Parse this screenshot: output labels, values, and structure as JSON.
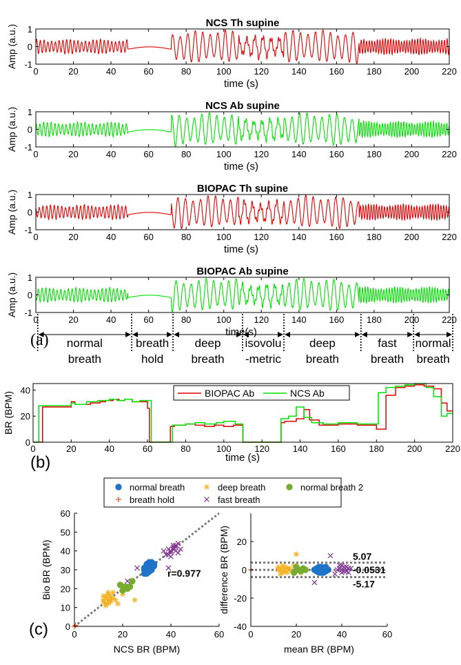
{
  "panel_labels": {
    "a": "(a)",
    "b": "(b)",
    "c": "(c)"
  },
  "colors": {
    "red": "#e00000",
    "green": "#00e000",
    "blue": "#1f73c8",
    "orange": "#f5b324",
    "olive": "#77ac30",
    "purple": "#7e2f8e",
    "brick": "#d95319",
    "ref_line": "#777777"
  },
  "signal_panels": [
    {
      "title": "NCS Th supine",
      "color": "red",
      "ylabel": "Amp (a.u.)",
      "xlabel": "time (s)",
      "xlim": [
        0,
        220
      ],
      "ylim": [
        -1,
        1
      ],
      "xticks": [
        0,
        20,
        40,
        60,
        80,
        100,
        120,
        140,
        160,
        180,
        200,
        220
      ],
      "yticks": [
        -1,
        0,
        1
      ]
    },
    {
      "title": "NCS Ab supine",
      "color": "green",
      "ylabel": "Amp (a.u.)",
      "xlabel": "time (s)",
      "xlim": [
        0,
        220
      ],
      "ylim": [
        -1,
        1
      ],
      "xticks": [
        0,
        20,
        40,
        60,
        80,
        100,
        120,
        140,
        160,
        180,
        200,
        220
      ],
      "yticks": [
        -1,
        0,
        1
      ]
    },
    {
      "title": "BIOPAC Th supine",
      "color": "red",
      "ylabel": "Amp (a.u.)",
      "xlabel": "time (s)",
      "xlim": [
        0,
        220
      ],
      "ylim": [
        -1,
        1
      ],
      "xticks": [
        0,
        20,
        40,
        60,
        80,
        100,
        120,
        140,
        160,
        180,
        200,
        220
      ],
      "yticks": [
        -1,
        0,
        1
      ]
    },
    {
      "title": "BIOPAC Ab supine",
      "color": "green",
      "ylabel": "Amp (a.u.)",
      "xlabel": "time(s)",
      "xlim": [
        0,
        220
      ],
      "ylim": [
        -1,
        1
      ],
      "xticks": [
        0,
        20,
        40,
        60,
        80,
        100,
        120,
        140,
        160,
        180,
        200,
        220
      ],
      "yticks": [
        -1,
        0,
        1
      ]
    }
  ],
  "signal_segments": [
    {
      "start": 0,
      "end": 49,
      "rate_bpm": 30,
      "amp": 0.4,
      "type": "normal"
    },
    {
      "start": 49,
      "end": 72,
      "rate_bpm": 0,
      "amp": 0.15,
      "type": "hold"
    },
    {
      "start": 72,
      "end": 108,
      "rate_bpm": 15,
      "amp": 0.9,
      "type": "deep"
    },
    {
      "start": 108,
      "end": 132,
      "rate_bpm": 14,
      "amp": 0.6,
      "type": "isovolumetric"
    },
    {
      "start": 132,
      "end": 172,
      "rate_bpm": 15,
      "amp": 0.9,
      "type": "deep"
    },
    {
      "start": 172,
      "end": 220,
      "rate_bpm": 42,
      "amp": 0.45,
      "type": "fast"
    }
  ],
  "phases": {
    "boundaries": [
      1,
      51,
      73,
      110,
      132,
      173,
      201,
      222
    ],
    "labels": [
      "normal\nbreath",
      "breath\nhold",
      "deep\nbreath",
      "isovolu\n-metric",
      "deep\nbreath",
      "fast\nbreath",
      "normal\nbreath"
    ]
  },
  "chart_data": [
    {
      "type": "line",
      "panel": "b",
      "ylabel": "BR (BPM)",
      "xlabel": "time (s)",
      "xlim": [
        0,
        220
      ],
      "ylim": [
        0,
        45
      ],
      "xticks": [
        0,
        20,
        40,
        60,
        80,
        100,
        120,
        140,
        160,
        180,
        200,
        220
      ],
      "yticks": [
        0,
        20,
        40
      ],
      "legend": "top",
      "series": [
        {
          "name": "BIOPAC Ab",
          "color": "red",
          "x": [
            0,
            5,
            5,
            20,
            20,
            22,
            22,
            30,
            30,
            35,
            35,
            38,
            38,
            42,
            42,
            45,
            45,
            48,
            48,
            52,
            52,
            55,
            55,
            60,
            60,
            61,
            61,
            72,
            72,
            74,
            74,
            80,
            80,
            85,
            85,
            90,
            90,
            95,
            95,
            100,
            100,
            105,
            105,
            110,
            110,
            130,
            130,
            132,
            132,
            138,
            138,
            142,
            142,
            145,
            145,
            150,
            150,
            160,
            160,
            170,
            170,
            180,
            180,
            185,
            185,
            190,
            190,
            195,
            195,
            200,
            200,
            205,
            205,
            210,
            210,
            214,
            214,
            217,
            217,
            220
          ],
          "y": [
            0,
            0,
            27,
            27,
            31,
            31,
            29,
            29,
            30,
            30,
            31,
            31,
            32,
            32,
            33,
            33,
            32,
            32,
            33,
            33,
            31,
            31,
            31,
            31,
            26,
            26,
            0,
            0,
            12,
            12,
            13,
            13,
            14,
            14,
            13,
            13,
            12,
            12,
            13,
            13,
            12,
            12,
            13,
            13,
            0,
            0,
            15,
            15,
            16,
            16,
            18,
            18,
            25,
            25,
            17,
            17,
            13,
            13,
            14,
            14,
            13,
            13,
            10,
            10,
            36,
            36,
            42,
            42,
            43,
            43,
            44,
            44,
            43,
            43,
            41,
            41,
            30,
            30,
            24,
            24
          ]
        },
        {
          "name": "NCS Ab",
          "color": "green",
          "x": [
            0,
            3,
            3,
            20,
            20,
            22,
            22,
            28,
            28,
            34,
            34,
            40,
            40,
            44,
            44,
            48,
            48,
            52,
            52,
            56,
            56,
            62,
            62,
            73,
            73,
            80,
            80,
            85,
            85,
            90,
            90,
            96,
            96,
            100,
            100,
            106,
            106,
            110,
            110,
            130,
            130,
            134,
            134,
            138,
            138,
            142,
            142,
            146,
            146,
            152,
            152,
            160,
            160,
            170,
            170,
            181,
            181,
            185,
            185,
            190,
            190,
            195,
            195,
            200,
            200,
            206,
            206,
            210,
            210,
            214,
            214,
            217,
            217,
            220
          ],
          "y": [
            0,
            0,
            28,
            28,
            30,
            30,
            29,
            29,
            31,
            31,
            32,
            32,
            33,
            33,
            32,
            32,
            33,
            33,
            31,
            31,
            32,
            32,
            0,
            0,
            13,
            13,
            14,
            14,
            15,
            15,
            14,
            14,
            15,
            15,
            16,
            16,
            14,
            14,
            0,
            0,
            18,
            18,
            20,
            20,
            27,
            27,
            19,
            19,
            15,
            15,
            14,
            14,
            15,
            15,
            14,
            14,
            38,
            38,
            42,
            42,
            43,
            43,
            44,
            44,
            45,
            45,
            42,
            42,
            35,
            35,
            20,
            20,
            22,
            22
          ]
        }
      ]
    },
    {
      "type": "scatter",
      "panel": "c-left",
      "xlabel": "NCS BR (BPM)",
      "ylabel": "Bio BR (BPM)",
      "xlim": [
        0,
        60
      ],
      "ylim": [
        0,
        60
      ],
      "xticks": [
        0,
        20,
        40,
        60
      ],
      "yticks": [
        0,
        10,
        20,
        30,
        40,
        50,
        60
      ],
      "annotation": "r=0.977",
      "legend": "top",
      "series": [
        {
          "name": "normal breath",
          "marker": "circle",
          "color": "blue",
          "points": [
            [
              29,
              28
            ],
            [
              30,
              29
            ],
            [
              31,
              30
            ],
            [
              30,
              31
            ],
            [
              31,
              32
            ],
            [
              32,
              33
            ],
            [
              30,
              30
            ],
            [
              29,
              31
            ],
            [
              31,
              29
            ],
            [
              32,
              31
            ],
            [
              33,
              32
            ],
            [
              30,
              33
            ],
            [
              31,
              34
            ],
            [
              32,
              30
            ],
            [
              29,
              30
            ],
            [
              30,
              28
            ],
            [
              31,
              31
            ],
            [
              33,
              33
            ],
            [
              32,
              34
            ],
            [
              30,
              32
            ]
          ]
        },
        {
          "name": "breath hold",
          "marker": "plus",
          "color": "brick",
          "points": [
            [
              0,
              0
            ],
            [
              0.5,
              0.5
            ]
          ]
        },
        {
          "name": "deep breath",
          "marker": "star",
          "color": "orange",
          "points": [
            [
              13,
              12
            ],
            [
              14,
              13
            ],
            [
              13,
              15
            ],
            [
              12,
              14
            ],
            [
              15,
              16
            ],
            [
              14,
              17
            ],
            [
              16,
              15
            ],
            [
              13,
              11
            ],
            [
              12,
              13
            ],
            [
              15,
              14
            ],
            [
              14,
              12
            ],
            [
              16,
              18
            ],
            [
              17,
              14
            ],
            [
              14,
              15
            ],
            [
              13,
              16
            ],
            [
              15,
              13
            ],
            [
              18,
              12
            ],
            [
              20,
              17
            ],
            [
              22,
              20
            ],
            [
              25,
              14
            ],
            [
              14,
              18
            ],
            [
              12,
              16
            ]
          ]
        },
        {
          "name": "fast breath",
          "marker": "x",
          "color": "purple",
          "points": [
            [
              39,
              38
            ],
            [
              40,
              40
            ],
            [
              41,
              42
            ],
            [
              42,
              43
            ],
            [
              43,
              44
            ],
            [
              40,
              39
            ],
            [
              41,
              41
            ],
            [
              42,
              40
            ],
            [
              38,
              38
            ],
            [
              39,
              41
            ],
            [
              41,
              43
            ],
            [
              42,
              42
            ],
            [
              40,
              37
            ],
            [
              37,
              40
            ],
            [
              39,
              31
            ],
            [
              44,
              41
            ],
            [
              43,
              39
            ],
            [
              26,
              31
            ],
            [
              22,
              24
            ]
          ]
        },
        {
          "name": "normal breath 2",
          "marker": "circle",
          "color": "olive",
          "points": [
            [
              21,
              21
            ],
            [
              22,
              20
            ],
            [
              19,
              22
            ],
            [
              24,
              24
            ],
            [
              20,
              19
            ],
            [
              23,
              21
            ]
          ]
        }
      ]
    },
    {
      "type": "scatter",
      "panel": "c-right",
      "xlabel": "mean BR (BPM)",
      "ylabel": "difference BR (BPM)",
      "xlim": [
        0,
        60
      ],
      "ylim": [
        -40,
        40
      ],
      "xticks": [
        0,
        20,
        40,
        60
      ],
      "yticks": [
        -40,
        -20,
        0,
        20
      ],
      "reference_lines": [
        {
          "value": 5.07,
          "label": "5.07"
        },
        {
          "value": -0.0531,
          "label": "-0.0531"
        },
        {
          "value": -5.17,
          "label": "-5.17"
        }
      ],
      "series": [
        {
          "name": "normal breath",
          "marker": "circle",
          "color": "blue",
          "points": [
            [
              29,
              1
            ],
            [
              30,
              -1
            ],
            [
              31,
              2
            ],
            [
              30,
              0
            ],
            [
              31,
              -2
            ],
            [
              32,
              1
            ],
            [
              33,
              -1
            ],
            [
              30,
              2
            ],
            [
              29,
              -1
            ],
            [
              31,
              0
            ],
            [
              32,
              -2
            ],
            [
              33,
              1
            ],
            [
              34,
              0
            ],
            [
              30,
              -2
            ],
            [
              31,
              1
            ],
            [
              28,
              0
            ],
            [
              32,
              -1
            ],
            [
              33,
              2
            ]
          ]
        },
        {
          "name": "breath hold",
          "marker": "plus",
          "color": "brick",
          "points": [
            [
              0,
              0
            ]
          ]
        },
        {
          "name": "deep breath",
          "marker": "star",
          "color": "orange",
          "points": [
            [
              13,
              1
            ],
            [
              14,
              -1
            ],
            [
              15,
              2
            ],
            [
              12,
              0
            ],
            [
              16,
              -2
            ],
            [
              14,
              3
            ],
            [
              13,
              -3
            ],
            [
              15,
              0
            ],
            [
              17,
              1
            ],
            [
              18,
              -1
            ],
            [
              20,
              11
            ],
            [
              14,
              -2
            ],
            [
              12,
              2
            ],
            [
              16,
              1
            ],
            [
              22,
              -2
            ],
            [
              19,
              3
            ],
            [
              15,
              -1
            ],
            [
              13,
              0
            ]
          ]
        },
        {
          "name": "fast breath",
          "marker": "x",
          "color": "purple",
          "points": [
            [
              39,
              1
            ],
            [
              40,
              0
            ],
            [
              41,
              2
            ],
            [
              42,
              -1
            ],
            [
              43,
              1
            ],
            [
              40,
              -2
            ],
            [
              41,
              -1
            ],
            [
              42,
              2
            ],
            [
              38,
              0
            ],
            [
              39,
              3
            ],
            [
              43,
              -2
            ],
            [
              35,
              10
            ],
            [
              37,
              -3
            ],
            [
              28,
              -9
            ],
            [
              44,
              1
            ],
            [
              40,
              3
            ]
          ]
        },
        {
          "name": "normal breath 2",
          "marker": "circle",
          "color": "olive",
          "points": [
            [
              21,
              0
            ],
            [
              22,
              -1
            ],
            [
              20,
              2
            ],
            [
              24,
              0
            ],
            [
              19,
              -2
            ],
            [
              23,
              1
            ]
          ]
        }
      ]
    }
  ]
}
